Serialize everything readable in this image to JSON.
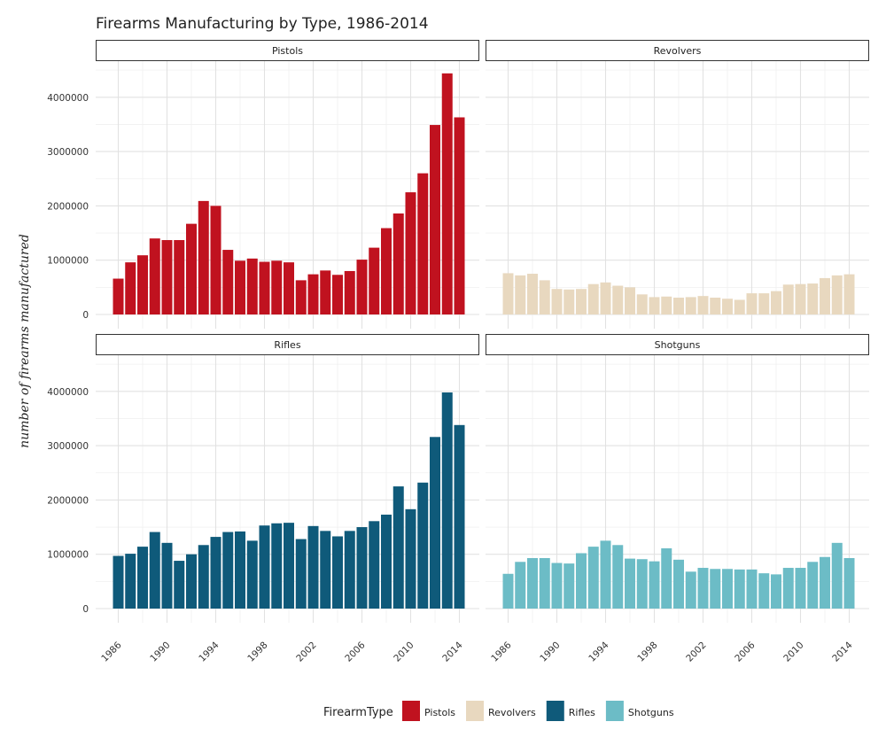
{
  "chart_data": {
    "type": "bar",
    "title": "Firearms Manufacturing by Type, 1986-2014",
    "xlabel": "",
    "ylabel": "number of firearms manufactured",
    "ylim": [
      0,
      4500000
    ],
    "y_ticks": [
      "0",
      "1000000",
      "2000000",
      "3000000",
      "4000000"
    ],
    "x_ticks": [
      "1986",
      "1990",
      "1994",
      "1998",
      "2002",
      "2006",
      "2010",
      "2014"
    ],
    "x": [
      1986,
      1987,
      1988,
      1989,
      1990,
      1991,
      1992,
      1993,
      1994,
      1995,
      1996,
      1997,
      1998,
      1999,
      2000,
      2001,
      2002,
      2003,
      2004,
      2005,
      2006,
      2007,
      2008,
      2009,
      2010,
      2011,
      2012,
      2013,
      2014
    ],
    "grid": true,
    "facets": [
      "Pistols",
      "Revolvers",
      "Rifles",
      "Shotguns"
    ],
    "legend": {
      "title": "FirearmType",
      "position": "bottom",
      "entries": [
        "Pistols",
        "Revolvers",
        "Rifles",
        "Shotguns"
      ]
    },
    "series": [
      {
        "name": "Pistols",
        "color": "#C0121F",
        "values": [
          660000,
          960000,
          1090000,
          1400000,
          1370000,
          1370000,
          1670000,
          2090000,
          2000000,
          1190000,
          990000,
          1030000,
          970000,
          990000,
          960000,
          630000,
          740000,
          810000,
          730000,
          800000,
          1010000,
          1230000,
          1590000,
          1860000,
          2250000,
          2600000,
          3490000,
          4440000,
          3630000
        ]
      },
      {
        "name": "Revolvers",
        "color": "#E8D8BF",
        "values": [
          760000,
          720000,
          750000,
          630000,
          470000,
          460000,
          470000,
          560000,
          590000,
          530000,
          500000,
          370000,
          320000,
          330000,
          310000,
          320000,
          340000,
          310000,
          290000,
          270000,
          390000,
          390000,
          430000,
          550000,
          560000,
          570000,
          670000,
          720000,
          740000
        ]
      },
      {
        "name": "Rifles",
        "color": "#0F5A7A",
        "values": [
          970000,
          1010000,
          1140000,
          1410000,
          1210000,
          880000,
          1000000,
          1170000,
          1320000,
          1410000,
          1420000,
          1250000,
          1530000,
          1570000,
          1580000,
          1280000,
          1520000,
          1430000,
          1330000,
          1430000,
          1500000,
          1610000,
          1730000,
          2250000,
          1830000,
          2320000,
          3160000,
          3980000,
          3380000
        ]
      },
      {
        "name": "Shotguns",
        "color": "#6CBCC6",
        "values": [
          640000,
          860000,
          930000,
          930000,
          840000,
          830000,
          1020000,
          1140000,
          1250000,
          1170000,
          920000,
          910000,
          870000,
          1110000,
          900000,
          680000,
          750000,
          730000,
          730000,
          720000,
          720000,
          650000,
          630000,
          750000,
          750000,
          860000,
          950000,
          1210000,
          930000
        ]
      }
    ]
  }
}
